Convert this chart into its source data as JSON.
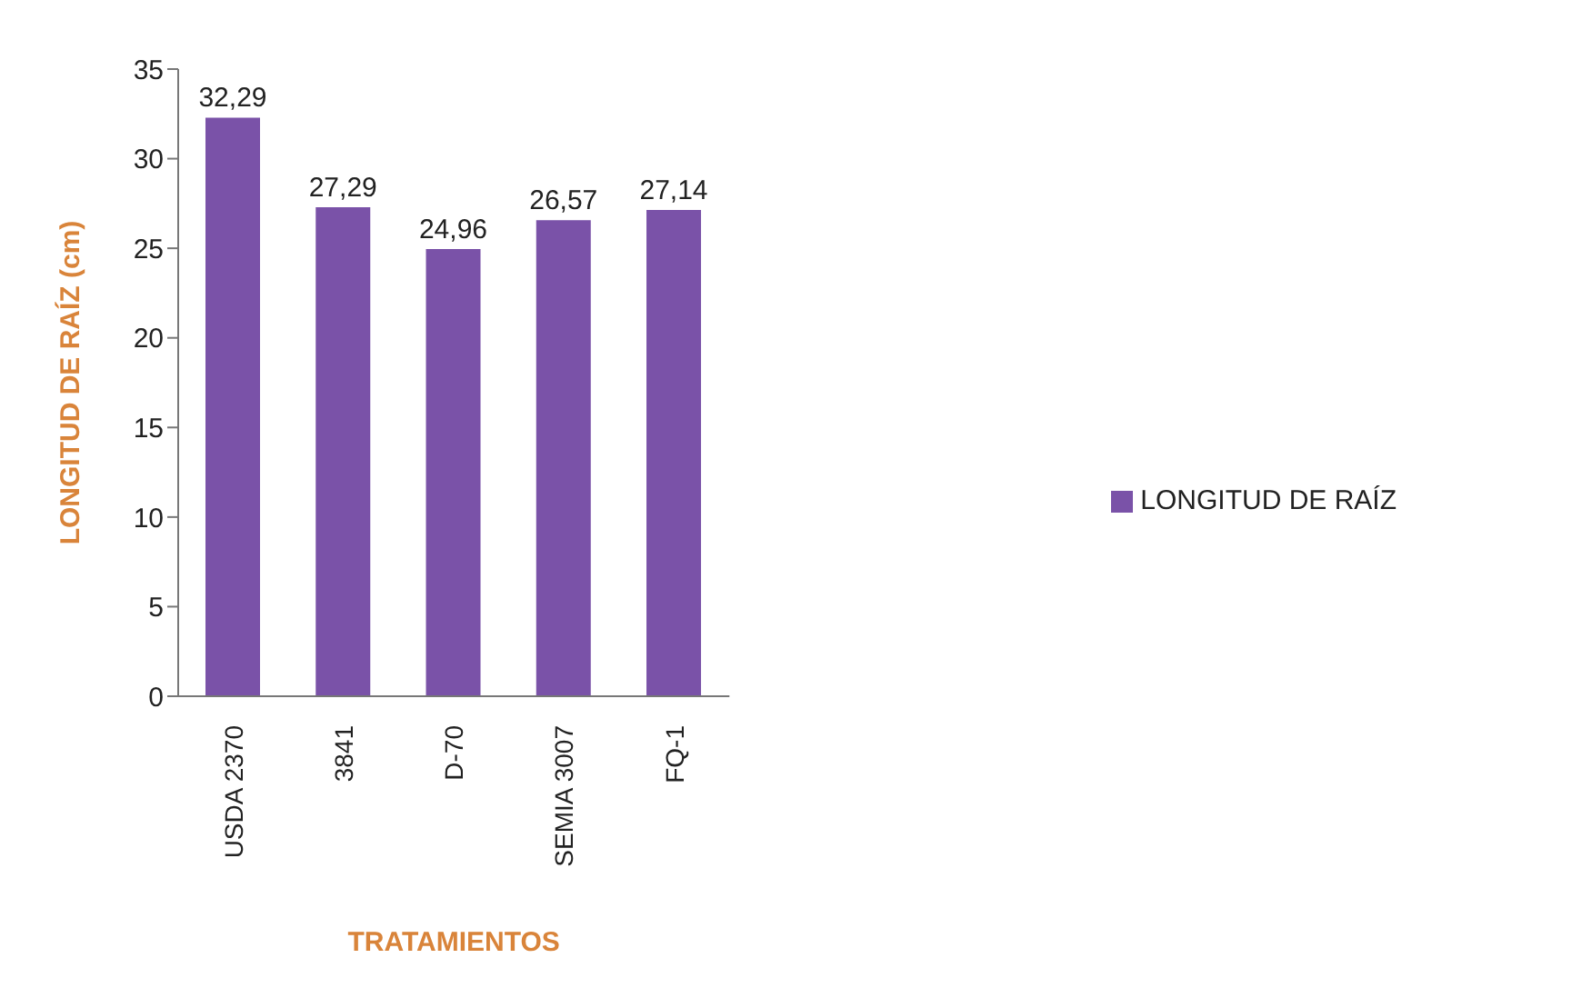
{
  "chart_data": {
    "type": "bar",
    "xlabel": "TRATAMIENTOS",
    "ylabel": "LONGITUD DE RAÍZ (cm)",
    "categories": [
      "USDA 2370",
      "3841",
      "D-70",
      "SEMIA 3007",
      "FQ-1"
    ],
    "series": [
      {
        "name": "LONGITUD DE RAÍZ",
        "color": "#7a52a8",
        "values": [
          32.29,
          27.29,
          24.96,
          26.57,
          27.14
        ],
        "value_labels": [
          "32,29",
          "27,29",
          "24,96",
          "26,57",
          "27,14"
        ]
      }
    ],
    "ylim": [
      0,
      35
    ],
    "yticks": [
      0,
      5,
      10,
      15,
      20,
      25,
      30,
      35
    ],
    "grid": false,
    "legend": "right"
  }
}
